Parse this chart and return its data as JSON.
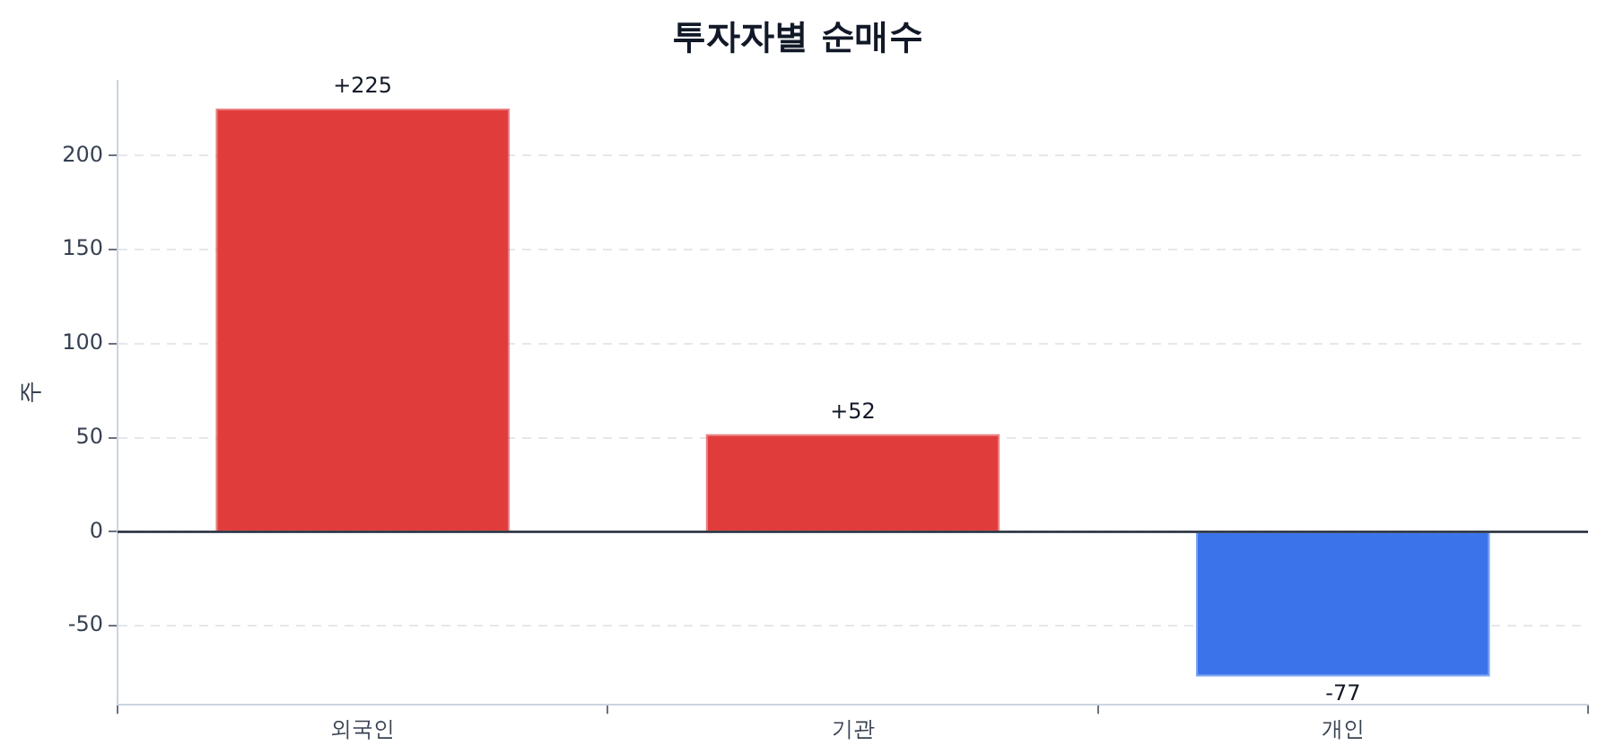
{
  "chart_data": {
    "type": "bar",
    "title": "투자자별 순매수",
    "ylabel": "주",
    "categories": [
      "외국인",
      "기관",
      "개인"
    ],
    "values": [
      225,
      52,
      -77
    ],
    "colors": [
      "#e03c3c",
      "#e03c3c",
      "#3b73ea"
    ],
    "value_labels": [
      "+225",
      "+52",
      "-77"
    ],
    "ylim": [
      -92,
      240
    ],
    "yticks": [
      -50,
      0,
      50,
      100,
      150,
      200
    ],
    "grid": "y",
    "ref_lines": [
      {
        "axis": "y",
        "value": 0,
        "color": "#1f2937"
      }
    ]
  }
}
